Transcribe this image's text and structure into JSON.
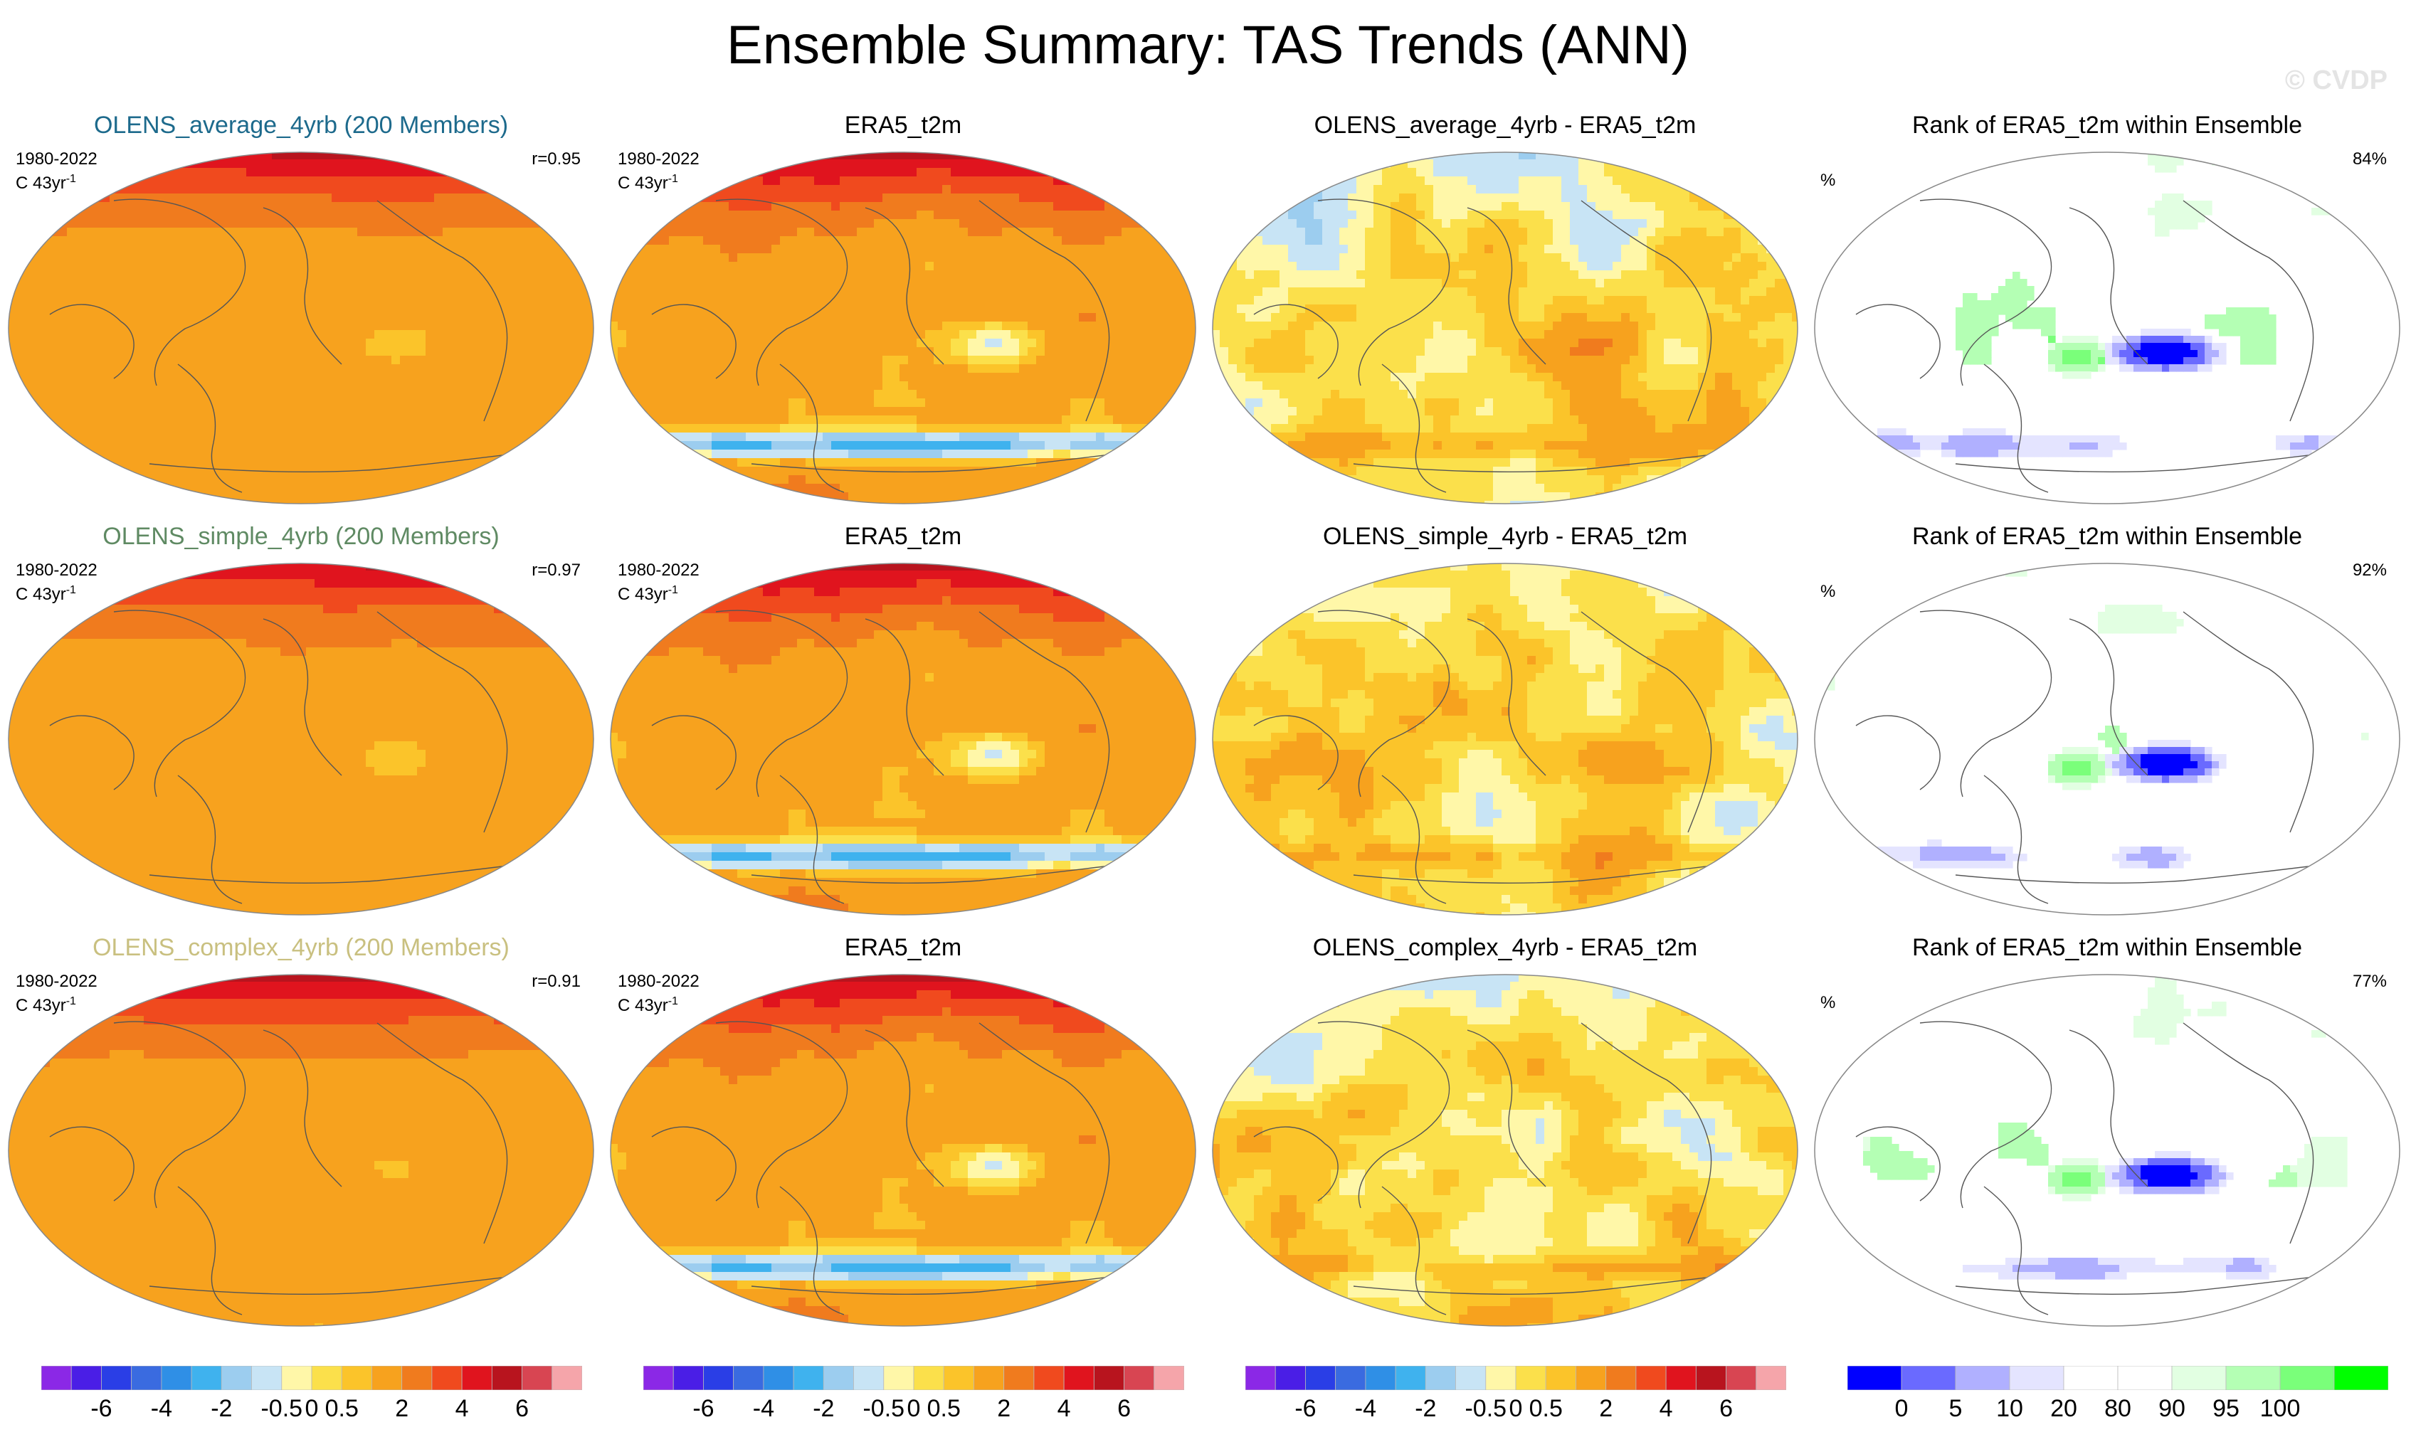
{
  "title": "Ensemble Summary: TAS Trends (ANN)",
  "watermark": "© CVDP",
  "period_label": "1980-2022",
  "units_label": "C 43yr",
  "units_exp": "-1",
  "percent_symbol": "%",
  "colors": {
    "title_average": "#1d6a8c",
    "title_simple": "#5f8a63",
    "title_complex": "#c9c080",
    "coast": "#555555"
  },
  "rows": [
    {
      "ensemble": {
        "title": "OLENS_average_4yrb (200 Members)",
        "corr": "r=0.95"
      },
      "obs": {
        "title": "ERA5_t2m"
      },
      "diff": {
        "title": "OLENS_average_4yrb - ERA5_t2m"
      },
      "rank": {
        "title": "Rank of ERA5_t2m within Ensemble",
        "pct": "84%"
      }
    },
    {
      "ensemble": {
        "title": "OLENS_simple_4yrb (200 Members)",
        "corr": "r=0.97"
      },
      "obs": {
        "title": "ERA5_t2m"
      },
      "diff": {
        "title": "OLENS_simple_4yrb - ERA5_t2m"
      },
      "rank": {
        "title": "Rank of ERA5_t2m within Ensemble",
        "pct": "92%"
      }
    },
    {
      "ensemble": {
        "title": "OLENS_complex_4yrb (200 Members)",
        "corr": "r=0.91"
      },
      "obs": {
        "title": "ERA5_t2m"
      },
      "diff": {
        "title": "OLENS_complex_4yrb - ERA5_t2m"
      },
      "rank": {
        "title": "Rank of ERA5_t2m within Ensemble",
        "pct": "77%"
      }
    }
  ],
  "colorbar_trend": {
    "colors": [
      "#8b28e6",
      "#4a1ee6",
      "#2a3ee6",
      "#3a6be0",
      "#2f8fe6",
      "#3fb2ee",
      "#9ccdef",
      "#c8e4f5",
      "#fff7a8",
      "#fbe04b",
      "#fbc42a",
      "#f7a21e",
      "#f07b1e",
      "#f04a1e",
      "#e0141e",
      "#b8141e",
      "#d84552",
      "#f5a5aa"
    ],
    "ticks": [
      "-6",
      "-4",
      "-2",
      "-0.5",
      "0",
      "0.5",
      "2",
      "4",
      "6"
    ]
  },
  "colorbar_rank": {
    "colors": [
      "#0000ff",
      "#6a6aff",
      "#b0b0ff",
      "#e4e4ff",
      "#ffffff",
      "#ffffff",
      "#e2ffe2",
      "#b4ffb4",
      "#7aff7a",
      "#00ff00"
    ],
    "ticks": [
      "0",
      "5",
      "10",
      "20",
      "80",
      "90",
      "95",
      "100"
    ]
  }
}
